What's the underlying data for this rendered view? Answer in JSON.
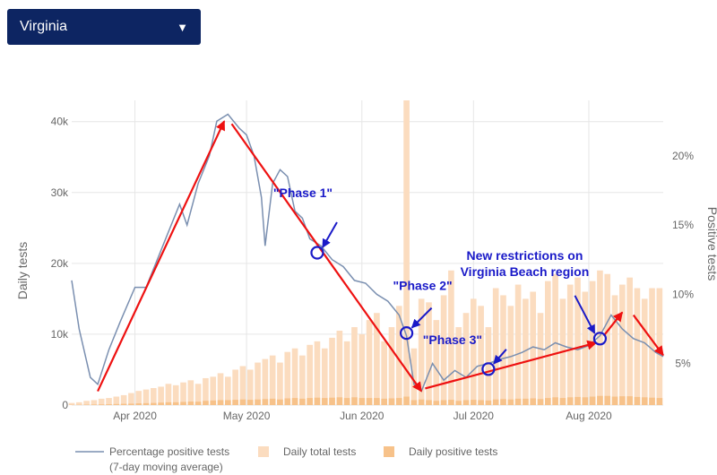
{
  "selector": {
    "value": "Virginia",
    "caret": "▼"
  },
  "colors": {
    "accent": "#0d2562",
    "line": "#7a8fb0",
    "total_bar": "#fbdcbf",
    "positive_bar": "#f7c28a",
    "arrow": "#ee1111",
    "annotation": "#1a1ac8"
  },
  "chart_data": {
    "type": "bar+line",
    "x_ticks": [
      "Apr 2020",
      "May 2020",
      "Jun 2020",
      "Jul 2020",
      "Aug 2020"
    ],
    "x_tick_dates": [
      "2020-04-01",
      "2020-05-01",
      "2020-06-01",
      "2020-07-01",
      "2020-08-01"
    ],
    "x_range": [
      "2020-03-15",
      "2020-08-21"
    ],
    "y_left": {
      "label": "Daily tests",
      "range": [
        0,
        43000
      ],
      "ticks": [
        0,
        10000,
        20000,
        30000,
        40000
      ],
      "tick_labels": [
        "0",
        "10k",
        "20k",
        "30k",
        "40k"
      ]
    },
    "y_right": {
      "label": "Positive tests",
      "range": [
        2,
        24
      ],
      "ticks": [
        5,
        10,
        15,
        20
      ],
      "tick_labels": [
        "5%",
        "10%",
        "15%",
        "20%"
      ]
    },
    "grid": true,
    "legend_position": "bottom",
    "series": [
      {
        "name": "Percentage positive tests",
        "sublabel": "(7-day moving average)",
        "type": "line",
        "axis": "right",
        "points": [
          [
            "2020-03-15",
            11.0
          ],
          [
            "2020-03-17",
            7.5
          ],
          [
            "2020-03-20",
            4.0
          ],
          [
            "2020-03-22",
            3.5
          ],
          [
            "2020-03-25",
            6.0
          ],
          [
            "2020-03-28",
            8.0
          ],
          [
            "2020-04-01",
            10.5
          ],
          [
            "2020-04-04",
            10.5
          ],
          [
            "2020-04-07",
            12.5
          ],
          [
            "2020-04-10",
            14.5
          ],
          [
            "2020-04-13",
            16.5
          ],
          [
            "2020-04-15",
            15.0
          ],
          [
            "2020-04-18",
            18.0
          ],
          [
            "2020-04-21",
            20.0
          ],
          [
            "2020-04-23",
            22.5
          ],
          [
            "2020-04-26",
            23.0
          ],
          [
            "2020-04-29",
            22.0
          ],
          [
            "2020-05-01",
            21.5
          ],
          [
            "2020-05-03",
            20.0
          ],
          [
            "2020-05-05",
            17.0
          ],
          [
            "2020-05-06",
            13.5
          ],
          [
            "2020-05-08",
            18.0
          ],
          [
            "2020-05-10",
            19.0
          ],
          [
            "2020-05-12",
            18.5
          ],
          [
            "2020-05-14",
            16.0
          ],
          [
            "2020-05-16",
            15.5
          ],
          [
            "2020-05-18",
            14.0
          ],
          [
            "2020-05-21",
            13.5
          ],
          [
            "2020-05-24",
            12.5
          ],
          [
            "2020-05-27",
            12.0
          ],
          [
            "2020-05-30",
            11.0
          ],
          [
            "2020-06-02",
            10.8
          ],
          [
            "2020-06-05",
            10.0
          ],
          [
            "2020-06-08",
            9.5
          ],
          [
            "2020-06-11",
            8.5
          ],
          [
            "2020-06-13",
            7.0
          ],
          [
            "2020-06-15",
            3.5
          ],
          [
            "2020-06-17",
            3.0
          ],
          [
            "2020-06-20",
            5.0
          ],
          [
            "2020-06-23",
            3.8
          ],
          [
            "2020-06-26",
            4.5
          ],
          [
            "2020-06-29",
            4.0
          ],
          [
            "2020-07-02",
            4.8
          ],
          [
            "2020-07-05",
            5.0
          ],
          [
            "2020-07-08",
            5.3
          ],
          [
            "2020-07-11",
            5.5
          ],
          [
            "2020-07-14",
            5.8
          ],
          [
            "2020-07-17",
            6.2
          ],
          [
            "2020-07-20",
            6.0
          ],
          [
            "2020-07-23",
            6.5
          ],
          [
            "2020-07-26",
            6.2
          ],
          [
            "2020-07-29",
            6.0
          ],
          [
            "2020-08-01",
            6.3
          ],
          [
            "2020-08-04",
            7.0
          ],
          [
            "2020-08-07",
            8.5
          ],
          [
            "2020-08-10",
            7.5
          ],
          [
            "2020-08-13",
            6.8
          ],
          [
            "2020-08-16",
            6.5
          ],
          [
            "2020-08-19",
            5.8
          ],
          [
            "2020-08-21",
            5.5
          ]
        ]
      },
      {
        "name": "Daily total tests",
        "type": "bar",
        "axis": "left"
      },
      {
        "name": "Daily positive tests",
        "type": "bar",
        "axis": "left"
      }
    ],
    "daily_bars": [
      [
        "2020-03-15",
        300,
        30
      ],
      [
        "2020-03-17",
        400,
        40
      ],
      [
        "2020-03-19",
        600,
        60
      ],
      [
        "2020-03-21",
        700,
        80
      ],
      [
        "2020-03-23",
        900,
        100
      ],
      [
        "2020-03-25",
        1000,
        120
      ],
      [
        "2020-03-27",
        1200,
        150
      ],
      [
        "2020-03-29",
        1400,
        180
      ],
      [
        "2020-03-31",
        1700,
        200
      ],
      [
        "2020-04-02",
        2000,
        250
      ],
      [
        "2020-04-04",
        2200,
        270
      ],
      [
        "2020-04-06",
        2400,
        300
      ],
      [
        "2020-04-08",
        2600,
        350
      ],
      [
        "2020-04-10",
        3000,
        400
      ],
      [
        "2020-04-12",
        2800,
        400
      ],
      [
        "2020-04-14",
        3200,
        450
      ],
      [
        "2020-04-16",
        3500,
        500
      ],
      [
        "2020-04-18",
        3000,
        480
      ],
      [
        "2020-04-20",
        3800,
        600
      ],
      [
        "2020-04-22",
        4000,
        650
      ],
      [
        "2020-04-24",
        4500,
        700
      ],
      [
        "2020-04-26",
        4000,
        700
      ],
      [
        "2020-04-28",
        5000,
        750
      ],
      [
        "2020-04-30",
        5500,
        800
      ],
      [
        "2020-05-02",
        5000,
        750
      ],
      [
        "2020-05-04",
        6000,
        800
      ],
      [
        "2020-05-06",
        6500,
        850
      ],
      [
        "2020-05-08",
        7000,
        900
      ],
      [
        "2020-05-10",
        6000,
        800
      ],
      [
        "2020-05-12",
        7500,
        950
      ],
      [
        "2020-05-14",
        8000,
        1000
      ],
      [
        "2020-05-16",
        7000,
        900
      ],
      [
        "2020-05-18",
        8500,
        1000
      ],
      [
        "2020-05-20",
        9000,
        1050
      ],
      [
        "2020-05-22",
        8000,
        1000
      ],
      [
        "2020-05-24",
        9500,
        1050
      ],
      [
        "2020-05-26",
        10500,
        1100
      ],
      [
        "2020-05-28",
        9000,
        1000
      ],
      [
        "2020-05-30",
        11000,
        1100
      ],
      [
        "2020-06-01",
        10000,
        1000
      ],
      [
        "2020-06-03",
        12000,
        1000
      ],
      [
        "2020-06-05",
        13000,
        1000
      ],
      [
        "2020-06-07",
        9000,
        900
      ],
      [
        "2020-06-09",
        11000,
        950
      ],
      [
        "2020-06-11",
        14000,
        1000
      ],
      [
        "2020-06-13",
        43000,
        1200
      ],
      [
        "2020-06-15",
        8000,
        700
      ],
      [
        "2020-06-17",
        15000,
        800
      ],
      [
        "2020-06-19",
        14500,
        700
      ],
      [
        "2020-06-21",
        12000,
        600
      ],
      [
        "2020-06-23",
        15500,
        700
      ],
      [
        "2020-06-25",
        19000,
        750
      ],
      [
        "2020-06-27",
        11000,
        600
      ],
      [
        "2020-06-29",
        13000,
        700
      ],
      [
        "2020-07-01",
        15000,
        750
      ],
      [
        "2020-07-03",
        14000,
        700
      ],
      [
        "2020-07-05",
        11000,
        650
      ],
      [
        "2020-07-07",
        16500,
        800
      ],
      [
        "2020-07-09",
        15500,
        850
      ],
      [
        "2020-07-11",
        14000,
        800
      ],
      [
        "2020-07-13",
        17000,
        900
      ],
      [
        "2020-07-15",
        15000,
        900
      ],
      [
        "2020-07-17",
        16000,
        950
      ],
      [
        "2020-07-19",
        13000,
        850
      ],
      [
        "2020-07-21",
        17500,
        1000
      ],
      [
        "2020-07-23",
        18500,
        1100
      ],
      [
        "2020-07-25",
        15000,
        1000
      ],
      [
        "2020-07-27",
        17000,
        1100
      ],
      [
        "2020-07-29",
        18000,
        1150
      ],
      [
        "2020-07-31",
        16000,
        1100
      ],
      [
        "2020-08-02",
        17500,
        1200
      ],
      [
        "2020-08-04",
        19000,
        1300
      ],
      [
        "2020-08-06",
        18500,
        1300
      ],
      [
        "2020-08-08",
        15500,
        1200
      ],
      [
        "2020-08-10",
        17000,
        1250
      ],
      [
        "2020-08-12",
        18000,
        1250
      ],
      [
        "2020-08-14",
        16500,
        1150
      ],
      [
        "2020-08-16",
        15000,
        1100
      ],
      [
        "2020-08-18",
        16500,
        1050
      ],
      [
        "2020-08-20",
        16500,
        1000
      ]
    ],
    "annotations": [
      {
        "text": "\"Phase 1\"",
        "date": "2020-05-20",
        "pct": 13.0
      },
      {
        "text": "\"Phase 2\"",
        "date": "2020-06-13",
        "pct": 7.2
      },
      {
        "text": "\"Phase 3\"",
        "date": "2020-07-05",
        "pct": 4.6
      },
      {
        "text": "New restrictions on",
        "text2": "Virginia Beach region",
        "date": "2020-08-04",
        "pct": 6.8
      }
    ],
    "trend_arrows": [
      {
        "from": [
          "2020-03-22",
          3.0
        ],
        "to": [
          "2020-04-25",
          22.5
        ]
      },
      {
        "from": [
          "2020-04-27",
          22.3
        ],
        "to": [
          "2020-06-17",
          3.0
        ]
      },
      {
        "from": [
          "2020-06-18",
          3.2
        ],
        "to": [
          "2020-08-03",
          6.5
        ]
      },
      {
        "from": [
          "2020-08-05",
          7.0
        ],
        "to": [
          "2020-08-10",
          8.7
        ]
      },
      {
        "from": [
          "2020-08-13",
          8.5
        ],
        "to": [
          "2020-08-21",
          5.6
        ]
      }
    ]
  }
}
